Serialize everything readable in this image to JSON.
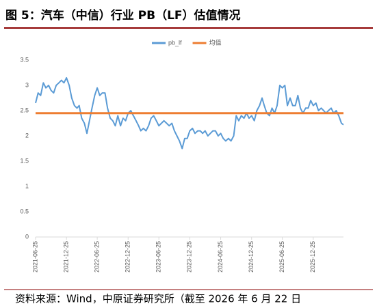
{
  "title": "图 5：汽车（中信）行业 PB（LF）估值情况",
  "source": "资料来源：Wind，中原证券研究所（截至 2026 年 6 月 22 日",
  "chart_data": {
    "type": "line",
    "x": [
      "2021-06-25",
      "2021-07-10",
      "2021-07-25",
      "2021-08-10",
      "2021-08-25",
      "2021-09-10",
      "2021-09-25",
      "2021-10-10",
      "2021-10-25",
      "2021-11-10",
      "2021-11-25",
      "2021-12-10",
      "2021-12-25",
      "2022-01-10",
      "2022-01-25",
      "2022-02-10",
      "2022-02-25",
      "2022-03-10",
      "2022-03-25",
      "2022-04-10",
      "2022-04-25",
      "2022-05-10",
      "2022-05-25",
      "2022-06-10",
      "2022-06-25",
      "2022-07-10",
      "2022-07-25",
      "2022-08-10",
      "2022-08-25",
      "2022-09-10",
      "2022-09-25",
      "2022-10-10",
      "2022-10-25",
      "2022-11-10",
      "2022-11-25",
      "2022-12-10",
      "2022-12-25",
      "2023-01-10",
      "2023-01-25",
      "2023-02-10",
      "2023-02-25",
      "2023-03-10",
      "2023-03-25",
      "2023-04-10",
      "2023-04-25",
      "2023-05-10",
      "2023-05-25",
      "2023-06-10",
      "2023-06-25",
      "2023-07-10",
      "2023-07-25",
      "2023-08-10",
      "2023-08-25",
      "2023-09-10",
      "2023-09-25",
      "2023-10-10",
      "2023-10-25",
      "2023-11-10",
      "2023-11-25",
      "2023-12-10",
      "2023-12-25",
      "2024-01-10",
      "2024-01-25",
      "2024-02-10",
      "2024-02-25",
      "2024-03-10",
      "2024-03-25",
      "2024-04-10",
      "2024-04-25",
      "2024-05-10",
      "2024-05-25",
      "2024-06-10",
      "2024-06-25",
      "2024-07-10",
      "2024-07-25",
      "2024-08-10",
      "2024-08-25",
      "2024-09-10",
      "2024-09-25",
      "2024-10-10",
      "2024-10-25",
      "2024-11-10",
      "2024-11-25",
      "2024-12-10",
      "2024-12-25",
      "2025-01-10",
      "2025-01-25",
      "2025-02-10",
      "2025-02-25",
      "2025-03-10",
      "2025-03-25",
      "2025-04-10",
      "2025-04-25",
      "2025-05-10",
      "2025-05-25",
      "2025-06-10",
      "2025-06-25",
      "2025-07-10",
      "2025-07-25",
      "2025-08-10",
      "2025-08-25",
      "2025-09-10",
      "2025-09-25",
      "2025-10-10",
      "2025-10-25",
      "2025-11-10",
      "2025-11-25",
      "2025-12-10",
      "2025-12-25",
      "2026-01-10",
      "2026-01-25",
      "2026-02-10",
      "2026-02-25",
      "2026-03-10",
      "2026-03-25",
      "2026-04-10",
      "2026-04-25",
      "2026-05-10",
      "2026-05-25",
      "2026-06-10",
      "2026-06-22"
    ],
    "series": [
      {
        "name": "pb_lf",
        "color": "#5b9bd5",
        "values": [
          2.65,
          2.85,
          2.8,
          3.05,
          2.95,
          3.0,
          2.9,
          2.85,
          3.0,
          3.05,
          3.1,
          3.05,
          3.15,
          3.0,
          2.75,
          2.6,
          2.55,
          2.6,
          2.35,
          2.25,
          2.05,
          2.3,
          2.55,
          2.8,
          2.95,
          2.8,
          2.85,
          2.85,
          2.55,
          2.35,
          2.3,
          2.2,
          2.4,
          2.2,
          2.35,
          2.3,
          2.45,
          2.5,
          2.4,
          2.3,
          2.2,
          2.1,
          2.15,
          2.1,
          2.2,
          2.35,
          2.4,
          2.3,
          2.2,
          2.25,
          2.3,
          2.25,
          2.2,
          2.25,
          2.1,
          2.0,
          1.9,
          1.75,
          1.95,
          1.95,
          2.1,
          2.15,
          2.05,
          2.1,
          2.1,
          2.05,
          2.1,
          2.0,
          2.05,
          2.1,
          2.1,
          2.0,
          2.05,
          1.95,
          1.9,
          1.95,
          1.9,
          2.0,
          2.4,
          2.3,
          2.4,
          2.35,
          2.45,
          2.35,
          2.4,
          2.3,
          2.5,
          2.6,
          2.75,
          2.6,
          2.45,
          2.4,
          2.55,
          2.45,
          2.6,
          3.0,
          2.95,
          3.0,
          2.6,
          2.75,
          2.6,
          2.6,
          2.8,
          2.55,
          2.45,
          2.55,
          2.55,
          2.7,
          2.6,
          2.65,
          2.5,
          2.55,
          2.5,
          2.45,
          2.5,
          2.55,
          2.45,
          2.5,
          2.4,
          2.25,
          2.22
        ]
      }
    ],
    "reference_line": {
      "name": "均值",
      "value": 2.45,
      "color": "#ed7d31"
    },
    "xlim": [
      "2021-06-25",
      "2026-06-22"
    ],
    "xticks": [
      "2021-06-25",
      "2021-12-25",
      "2022-06-25",
      "2022-12-25",
      "2023-06-25",
      "2023-12-25",
      "2024-06-25",
      "2024-12-25",
      "2025-06-25",
      "2025-12-25"
    ],
    "ylim": [
      0,
      3.5
    ],
    "yticks": [
      0,
      0.5,
      1,
      1.5,
      2,
      2.5,
      3,
      3.5
    ],
    "grid": false
  }
}
